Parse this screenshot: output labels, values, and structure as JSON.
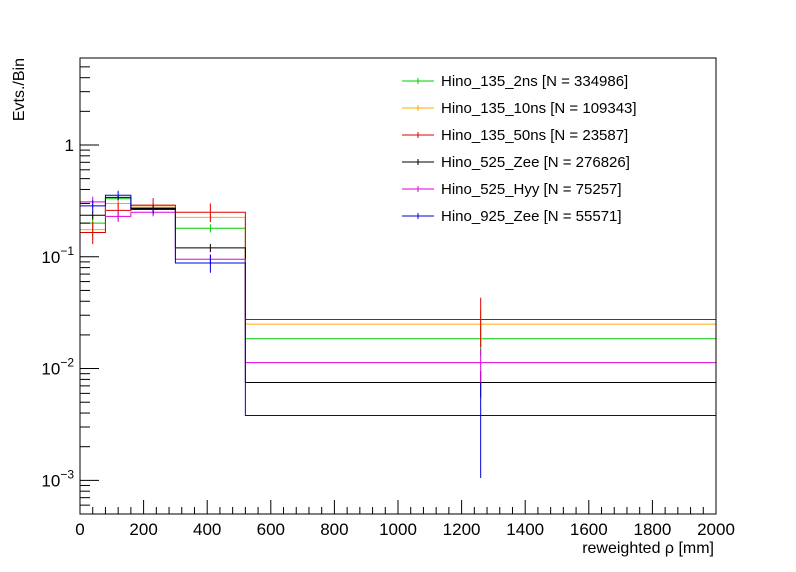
{
  "chart_data": {
    "type": "step",
    "xlabel": "reweighted  ρ [mm]",
    "ylabel": "Evts./Bin",
    "xlim": [
      0,
      2000
    ],
    "ylim": [
      0.0005,
      6
    ],
    "yscale": "log",
    "x_ticks": [
      {
        "v": 0,
        "label": "0"
      },
      {
        "v": 200,
        "label": "200"
      },
      {
        "v": 400,
        "label": "400"
      },
      {
        "v": 600,
        "label": "600"
      },
      {
        "v": 800,
        "label": "800"
      },
      {
        "v": 1000,
        "label": "1000"
      },
      {
        "v": 1200,
        "label": "1200"
      },
      {
        "v": 1400,
        "label": "1400"
      },
      {
        "v": 1600,
        "label": "1600"
      },
      {
        "v": 1800,
        "label": "1800"
      },
      {
        "v": 2000,
        "label": "2000"
      }
    ],
    "y_ticks": [
      {
        "v": 0.001,
        "base": "10",
        "exp": "−3"
      },
      {
        "v": 0.01,
        "base": "10",
        "exp": "−2"
      },
      {
        "v": 0.1,
        "base": "10",
        "exp": "−1"
      },
      {
        "v": 1,
        "base": "1",
        "exp": ""
      }
    ],
    "bin_edges": [
      0,
      80,
      160,
      300,
      520,
      2000
    ],
    "legend_position": "top-right",
    "series": [
      {
        "name": "Hino_135_2ns [N = 334986]",
        "color": "#00cc00",
        "values": [
          0.2,
          0.33,
          0.275,
          0.18,
          0.0185
        ],
        "errors": [
          [
            0.165,
            0.235
          ],
          [
            0.31,
            0.35
          ],
          [
            0.26,
            0.29
          ],
          [
            0.165,
            0.195
          ],
          [
            0.013,
            0.024
          ]
        ]
      },
      {
        "name": "Hino_135_10ns [N = 109343]",
        "color": "#ffaa00",
        "values": [
          0.175,
          0.3,
          0.285,
          0.225,
          0.025
        ],
        "errors": [
          [
            0.145,
            0.205
          ],
          [
            0.275,
            0.325
          ],
          [
            0.265,
            0.305
          ],
          [
            0.205,
            0.245
          ],
          [
            0.017,
            0.033
          ]
        ]
      },
      {
        "name": "Hino_135_50ns [N = 23587]",
        "color": "#dd0000",
        "values": [
          0.165,
          0.26,
          0.29,
          0.25,
          0.0275
        ],
        "errors": [
          [
            0.13,
            0.205
          ],
          [
            0.215,
            0.305
          ],
          [
            0.245,
            0.335
          ],
          [
            0.205,
            0.3
          ],
          [
            0.0155,
            0.043
          ]
        ]
      },
      {
        "name": "Hino_525_Zee [N = 276826]",
        "color": "#000000",
        "values": [
          0.235,
          0.34,
          0.27,
          0.12,
          0.0075
        ],
        "errors": [
          [
            0.215,
            0.255
          ],
          [
            0.325,
            0.355
          ],
          [
            0.26,
            0.28
          ],
          [
            0.11,
            0.13
          ],
          [
            0.0055,
            0.0095
          ]
        ]
      },
      {
        "name": "Hino_525_Hyy [N = 75257]",
        "color": "#dd00dd",
        "values": [
          0.31,
          0.23,
          0.25,
          0.095,
          0.0113
        ],
        "errors": [
          [
            0.275,
            0.345
          ],
          [
            0.205,
            0.255
          ],
          [
            0.23,
            0.27
          ],
          [
            0.085,
            0.105
          ],
          [
            0.0075,
            0.015
          ]
        ]
      },
      {
        "name": "Hino_925_Zee [N = 55571]",
        "color": "#0000dd",
        "values": [
          0.285,
          0.355,
          0.265,
          0.088,
          0.0038
        ],
        "errors": [
          [
            0.25,
            0.32
          ],
          [
            0.32,
            0.39
          ],
          [
            0.24,
            0.29
          ],
          [
            0.072,
            0.104
          ],
          [
            0.00105,
            0.0075
          ]
        ]
      }
    ]
  }
}
